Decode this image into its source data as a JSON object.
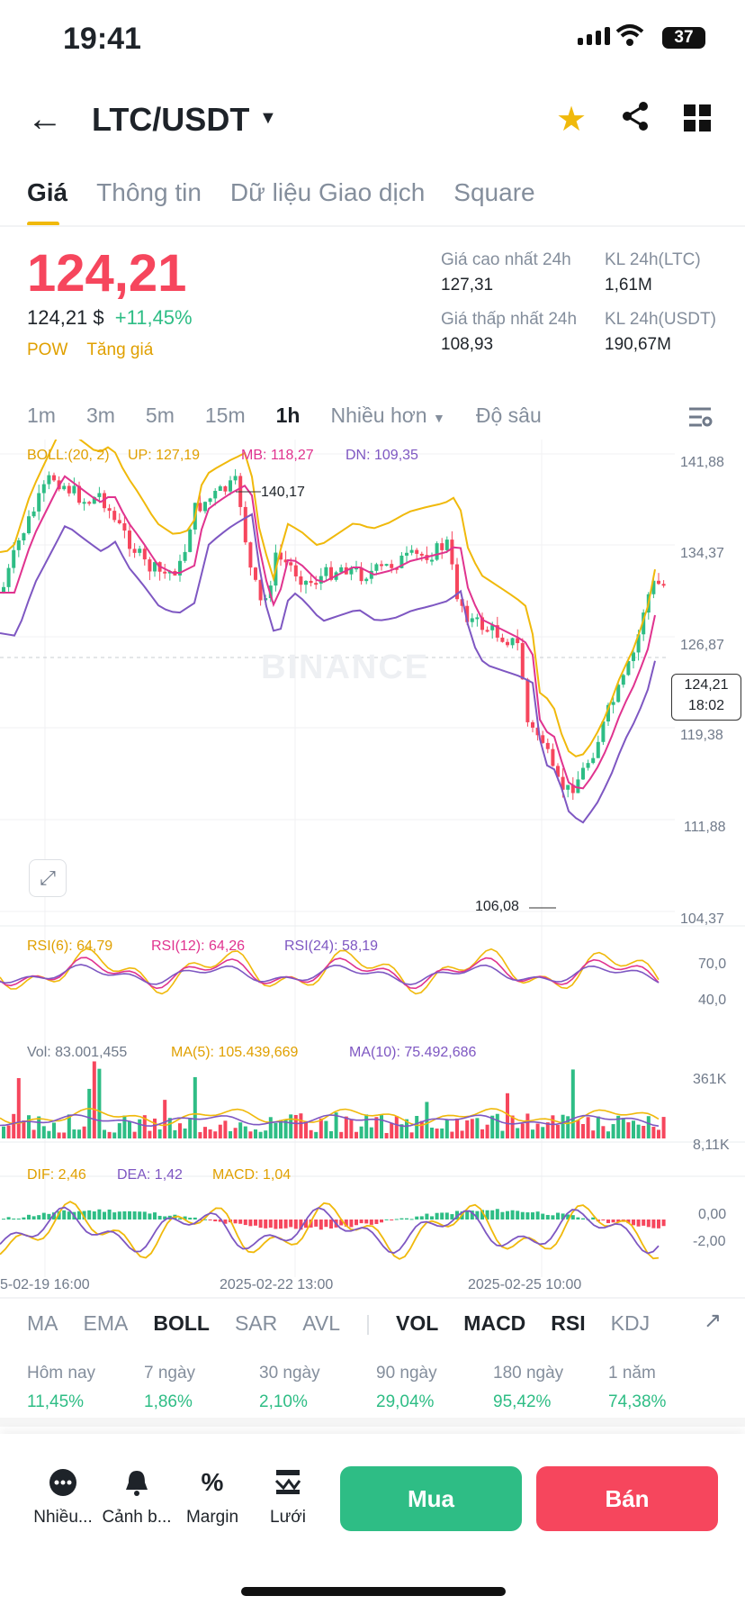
{
  "status": {
    "time": "19:41",
    "battery": "37"
  },
  "header": {
    "pair": "LTC/USDT"
  },
  "tabs": [
    "Giá",
    "Thông tin",
    "Dữ liệu Giao dịch",
    "Square"
  ],
  "price": {
    "last": "124,21",
    "fiat": "124,21 $",
    "change": "+11,45%",
    "tags": [
      "POW",
      "Tăng giá"
    ],
    "high_label": "Giá cao nhất 24h",
    "high": "127,31",
    "low_label": "Giá thấp nhất 24h",
    "low": "108,93",
    "vol_ltc_label": "KL 24h(LTC)",
    "vol_ltc": "1,61M",
    "vol_usdt_label": "KL 24h(USDT)",
    "vol_usdt": "190,67M"
  },
  "intervals": [
    "1m",
    "3m",
    "5m",
    "15m",
    "1h",
    "Nhiều hơn",
    "Độ sâu"
  ],
  "boll": {
    "label": "BOLL:(20, 2)",
    "up": "UP: 127,19",
    "mb": "MB: 118,27",
    "dn": "DN: 109,35"
  },
  "price_axis": [
    "141,88",
    "134,37",
    "126,87",
    "119,38",
    "111,88",
    "104,37"
  ],
  "current_tag": {
    "price": "124,21",
    "time": "18:02"
  },
  "annotations": {
    "high": "140,17",
    "low": "106,08"
  },
  "watermark": "BINANCE",
  "rsi": {
    "r6": "RSI(6): 64,79",
    "r12": "RSI(12): 64,26",
    "r24": "RSI(24): 58,19",
    "axis": [
      "70,0",
      "40,0"
    ]
  },
  "vol": {
    "vol": "Vol: 83.001,455",
    "ma5": "MA(5): 105.439,669",
    "ma10": "MA(10): 75.492,686",
    "axis": [
      "361K",
      "8,11K"
    ]
  },
  "macd": {
    "dif": "DIF: 2,46",
    "dea": "DEA: 1,42",
    "macd": "MACD: 1,04",
    "axis": [
      "0,00",
      "-2,00"
    ]
  },
  "dates": [
    "5-02-19 16:00",
    "2025-02-22 13:00",
    "2025-02-25 10:00"
  ],
  "indicator_tabs": [
    "MA",
    "EMA",
    "BOLL",
    "SAR",
    "AVL",
    "VOL",
    "MACD",
    "RSI",
    "KDJ"
  ],
  "performance": [
    {
      "label": "Hôm nay",
      "value": "11,45%"
    },
    {
      "label": "7 ngày",
      "value": "1,86%"
    },
    {
      "label": "30 ngày",
      "value": "2,10%"
    },
    {
      "label": "90 ngày",
      "value": "29,04%"
    },
    {
      "label": "180 ngày",
      "value": "95,42%"
    },
    {
      "label": "1 năm",
      "value": "74,38%"
    }
  ],
  "bottom": {
    "more": "Nhiều...",
    "alert": "Cảnh b...",
    "margin": "Margin",
    "grid": "Lưới",
    "buy": "Mua",
    "sell": "Bán"
  },
  "colors": {
    "up": "#2ebd85",
    "down": "#f6465d",
    "accent": "#f0b90b",
    "boll_up": "#f0b90b",
    "boll_mb": "#e0338f",
    "boll_dn": "#7e57c2"
  }
}
